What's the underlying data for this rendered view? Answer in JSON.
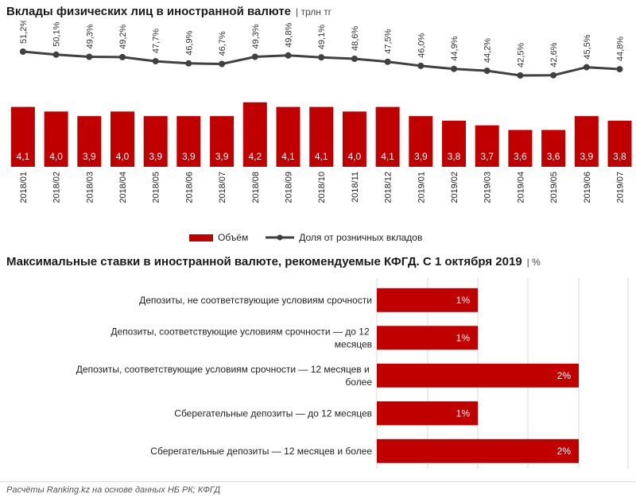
{
  "colors": {
    "bar": "#c00000",
    "line": "#404040",
    "bar_label": "#ffffff",
    "grid": "#d9d9d9"
  },
  "chart1": {
    "title": "Вклады физических лиц в иностранной валюте",
    "unit": "| трлн тг",
    "legend": {
      "bars": "Объём",
      "line": "Доля от розничных вкладов"
    }
  },
  "chart2": {
    "title": "Максимальные ставки в иностранной валюте, рекомендуемые КФГД. С 1 октября 2019",
    "unit": "| %"
  },
  "footer": "Расчёты Ranking.kz  на основе данных НБ РК;  КФГД",
  "chart_data": [
    {
      "type": "bar",
      "title": "Вклады физических лиц в иностранной валюте",
      "ylabel": "трлн тг",
      "categories": [
        "2018/01",
        "2018/02",
        "2018/03",
        "2018/04",
        "2018/05",
        "2018/06",
        "2018/07",
        "2018/08",
        "2018/09",
        "2018/10",
        "2018/11",
        "2018/12",
        "2019/01",
        "2019/02",
        "2019/03",
        "2019/04",
        "2019/05",
        "2019/06",
        "2019/07"
      ],
      "series": [
        {
          "name": "Объём",
          "type": "bar",
          "values": [
            4.1,
            4.0,
            3.9,
            4.0,
            3.9,
            3.9,
            3.9,
            4.2,
            4.1,
            4.1,
            4.0,
            4.1,
            3.9,
            3.8,
            3.7,
            3.6,
            3.6,
            3.9,
            3.8
          ],
          "labels": [
            "4,1",
            "4,0",
            "3,9",
            "4,0",
            "3,9",
            "3,9",
            "3,9",
            "4,2",
            "4,1",
            "4,1",
            "4,0",
            "4,1",
            "3,9",
            "3,8",
            "3,7",
            "3,6",
            "3,6",
            "3,9",
            "3,8"
          ]
        },
        {
          "name": "Доля от розничных вкладов",
          "type": "line",
          "values": [
            51.2,
            50.1,
            49.3,
            49.2,
            47.7,
            46.9,
            46.7,
            49.3,
            49.8,
            49.1,
            48.6,
            47.5,
            46.0,
            44.9,
            44.2,
            42.5,
            42.6,
            45.5,
            44.8
          ],
          "labels": [
            "51,2%",
            "50,1%",
            "49,3%",
            "49,2%",
            "47,7%",
            "46,9%",
            "46,7%",
            "49,3%",
            "49,8%",
            "49,1%",
            "48,6%",
            "47,5%",
            "46,0%",
            "44,9%",
            "44,2%",
            "42,5%",
            "42,6%",
            "45,5%",
            "44,8%"
          ]
        }
      ]
    },
    {
      "type": "bar",
      "orientation": "horizontal",
      "title": "Максимальные ставки в иностранной валюте, рекомендуемые КФГД. С 1 октября 2019",
      "unit": "%",
      "categories": [
        "Депозиты, не соответствующие условиям срочности",
        "Депозиты, соответствующие условиям срочности — до 12 месяцев",
        "Депозиты, соответствующие условиям срочности — 12 месяцев и более",
        "Сберегательные депозиты — до 12 месяцев",
        "Сберегательные депозиты — 12 месяцев и более"
      ],
      "values": [
        1,
        1,
        2,
        1,
        2
      ],
      "labels": [
        "1%",
        "1%",
        "2%",
        "1%",
        "2%"
      ],
      "xlim": [
        0,
        3
      ]
    }
  ]
}
